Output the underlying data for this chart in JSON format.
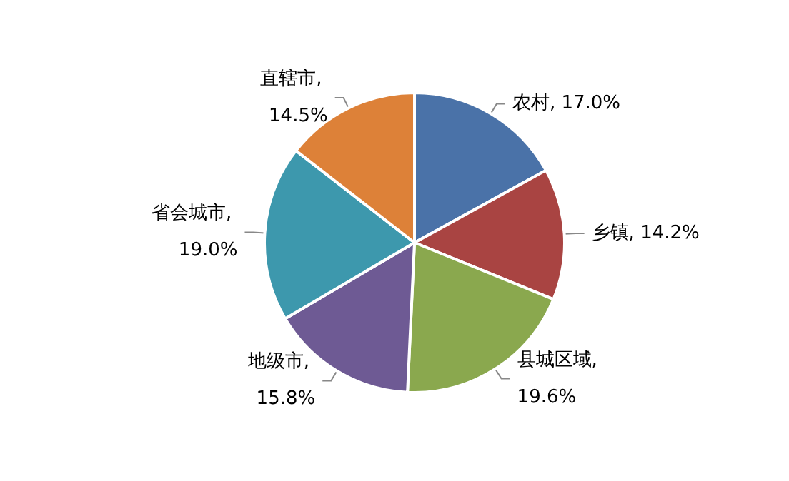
{
  "chart_data": {
    "type": "pie",
    "categories": [
      "农村",
      "乡镇",
      "县城区域",
      "地级市",
      "省会城市",
      "直辖市"
    ],
    "values": [
      17.0,
      14.2,
      19.6,
      15.8,
      19.0,
      14.5
    ],
    "value_labels": [
      ", 17.0%",
      ", 14.2%",
      ", 19.6%",
      ", 15.8%",
      ", 19.0%",
      ", 14.5%"
    ],
    "colors": [
      "#4a72a8",
      "#a94442",
      "#8aa84e",
      "#6e5a94",
      "#3d98ad",
      "#dd8138"
    ],
    "legend": false
  }
}
